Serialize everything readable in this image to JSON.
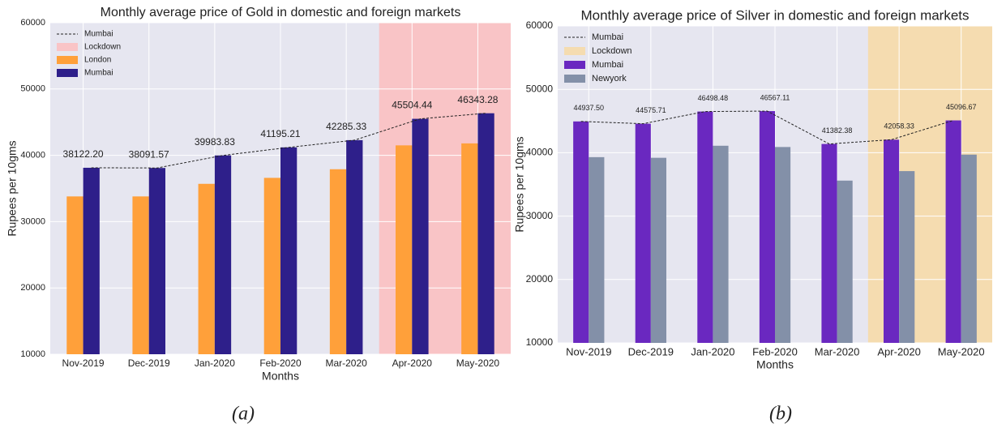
{
  "chart_data": [
    {
      "type": "bar",
      "title": "Monthly average price of Gold in domestic and foreign markets",
      "caption": "(a)",
      "x_label": "Months",
      "y_label": "Rupees per 10gms",
      "categories": [
        "Nov-2019",
        "Dec-2019",
        "Jan-2020",
        "Feb-2020",
        "Mar-2020",
        "Apr-2020",
        "May-2020"
      ],
      "series": [
        {
          "name": "Mumbai",
          "type": "line",
          "color": "#222222",
          "values": [
            38122.2,
            38091.57,
            39983.83,
            41195.21,
            42285.33,
            45504.44,
            46343.28
          ]
        },
        {
          "name": "London",
          "type": "bar",
          "color": "#ffa03a",
          "values": [
            33800,
            33800,
            35700,
            36600,
            37900,
            41500,
            41800
          ]
        },
        {
          "name": "Mumbai",
          "type": "bar",
          "color": "#2e1f8a",
          "values": [
            38122.2,
            38091.57,
            39983.83,
            41195.21,
            42285.33,
            45504.44,
            46343.28
          ],
          "value_labels": [
            "38122.20",
            "38091.57",
            "39983.83",
            "41195.21",
            "42285.33",
            "45504.44",
            "46343.28"
          ]
        }
      ],
      "highlight": {
        "name": "Lockdown",
        "color": "#f9c4c6",
        "categories": [
          "Apr-2020",
          "May-2020"
        ]
      },
      "ylim": [
        10000,
        60000
      ],
      "yticks": [
        10000,
        20000,
        30000,
        40000,
        50000,
        60000
      ],
      "grid": true,
      "legend": "upper left"
    },
    {
      "type": "bar",
      "title": "Monthly average price of Silver in domestic and foreign markets",
      "caption": "(b)",
      "x_label": "Months",
      "y_label": "Rupees per 10gms",
      "categories": [
        "Nov-2019",
        "Dec-2019",
        "Jan-2020",
        "Feb-2020",
        "Mar-2020",
        "Apr-2020",
        "May-2020"
      ],
      "series": [
        {
          "name": "Mumbai",
          "type": "line",
          "color": "#222222",
          "values": [
            44937.5,
            44575.71,
            46498.48,
            46567.11,
            41382.38,
            42058.33,
            45096.67
          ]
        },
        {
          "name": "Mumbai",
          "type": "bar",
          "color": "#6a28c0",
          "values": [
            44937.5,
            44575.71,
            46498.48,
            46567.11,
            41382.38,
            42058.33,
            45096.67
          ],
          "value_labels": [
            "44937.50",
            "44575.71",
            "46498.48",
            "46567.11",
            "41382.38",
            "42058.33",
            "45096.67"
          ]
        },
        {
          "name": "Newyork",
          "type": "bar",
          "color": "#8390a8",
          "values": [
            39300,
            39200,
            41100,
            40900,
            35600,
            37100,
            39700
          ]
        }
      ],
      "highlight": {
        "name": "Lockdown",
        "color": "#f5dcb0",
        "categories": [
          "Apr-2020",
          "May-2020"
        ]
      },
      "ylim": [
        10000,
        60000
      ],
      "yticks": [
        10000,
        20000,
        30000,
        40000,
        50000,
        60000
      ],
      "grid": true,
      "legend": "upper left"
    }
  ]
}
